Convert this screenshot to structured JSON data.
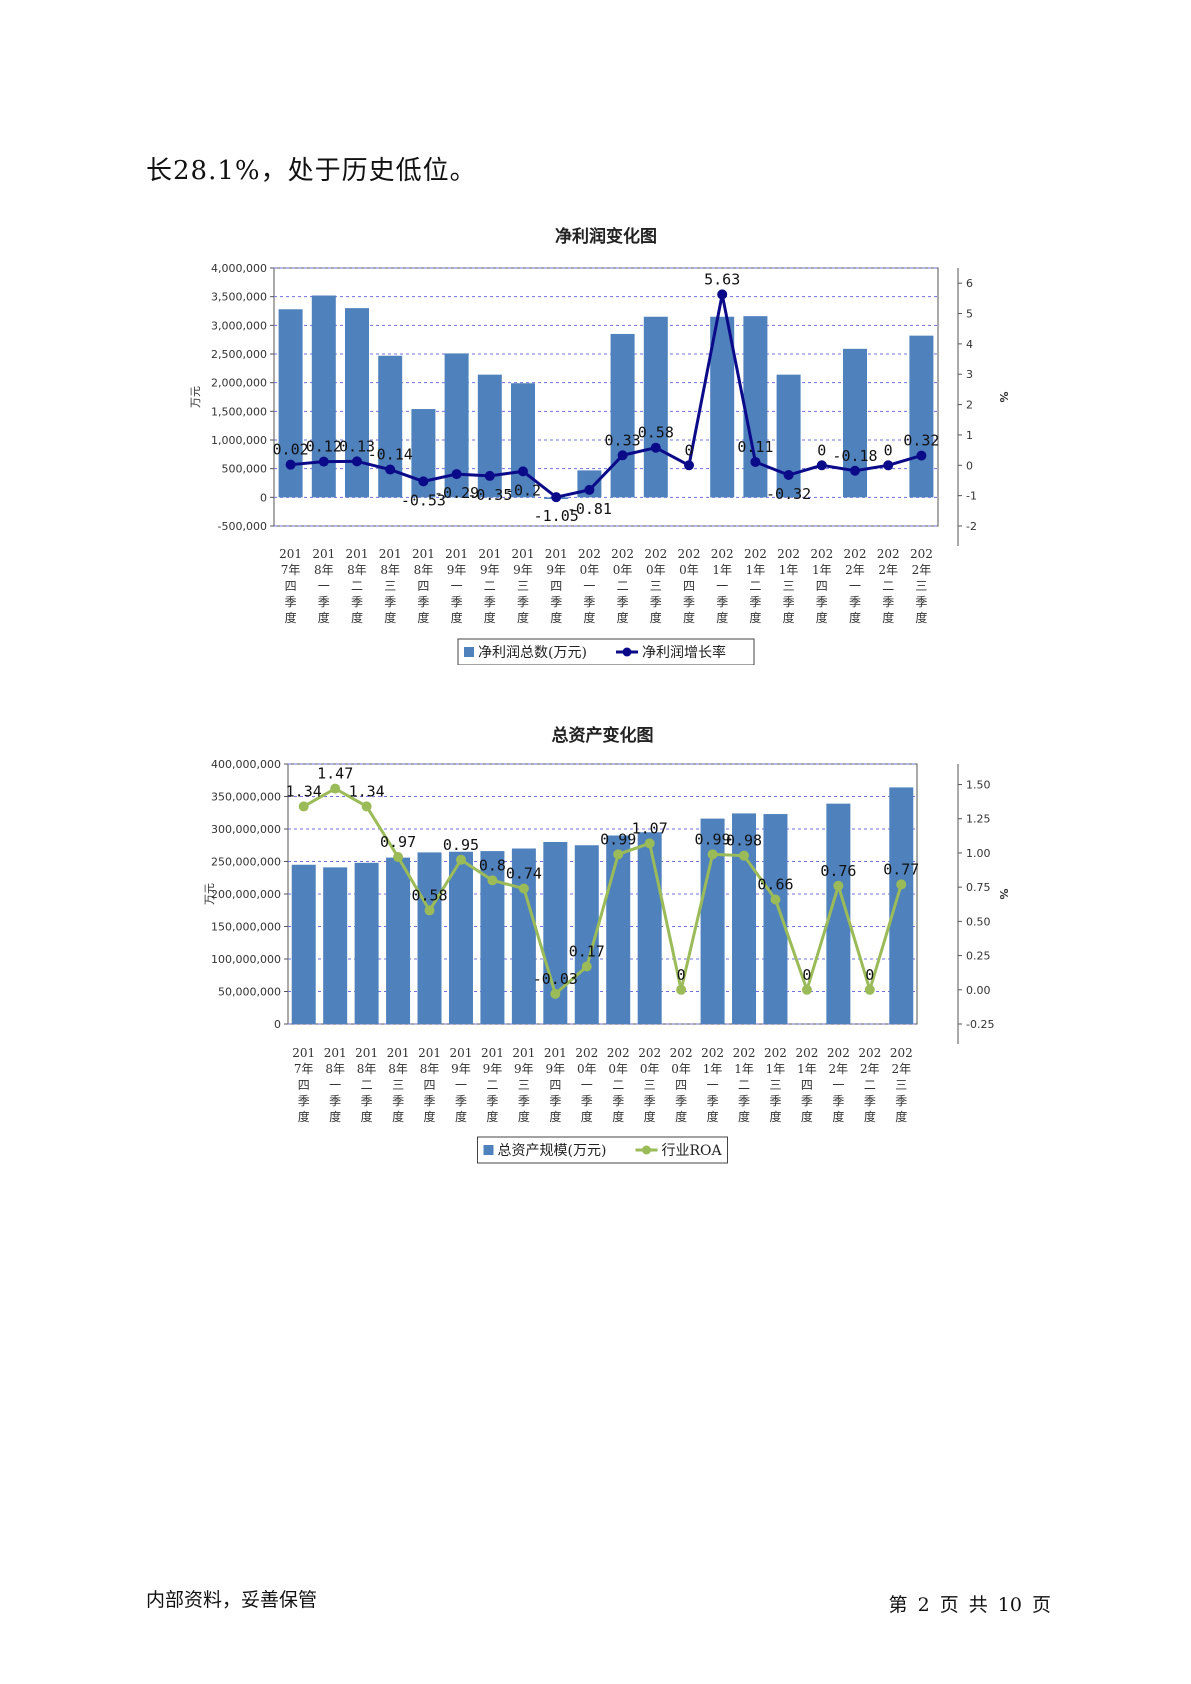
{
  "intro_text": "长28.1%，处于历史低位。",
  "footer": {
    "left": "内部资料，妥善保管",
    "right": "第 2 页   共 10 页"
  },
  "colors": {
    "bar": "#4f81bd",
    "line1": "#0b0b8a",
    "line2": "#9bbb59",
    "grid": "#7070e0"
  },
  "chart_data": [
    {
      "type": "bar",
      "title": "净利润变化图",
      "ylabel": "万元",
      "y2label": "%",
      "categories": [
        "2017年四季度",
        "2018年一季度",
        "2018年二季度",
        "2018年三季度",
        "2018年四季度",
        "2019年一季度",
        "2019年二季度",
        "2019年三季度",
        "2019年四季度",
        "2020年一季度",
        "2020年二季度",
        "2020年三季度",
        "2020年四季度",
        "2021年一季度",
        "2021年二季度",
        "2021年三季度",
        "2021年四季度",
        "2022年一季度",
        "2022年二季度",
        "2022年三季度"
      ],
      "ylim": [
        -500000,
        4000000
      ],
      "yticks": [
        -500000,
        0,
        500000,
        1000000,
        1500000,
        2000000,
        2500000,
        3000000,
        3500000,
        4000000
      ],
      "ytick_labels": [
        "-500,000",
        "0",
        "500,000",
        "1,000,000",
        "1,500,000",
        "2,000,000",
        "2,500,000",
        "3,000,000",
        "3,500,000",
        "4,000,000"
      ],
      "y2lim": [
        -2,
        6.5
      ],
      "y2ticks": [
        -2,
        -1,
        0,
        1,
        2,
        3,
        4,
        5,
        6
      ],
      "series": [
        {
          "name": "净利润总数(万元)",
          "kind": "bar",
          "axis": "left",
          "values": [
            3280000,
            3520000,
            3300000,
            2470000,
            1540000,
            2510000,
            2140000,
            1990000,
            -30000,
            470000,
            2850000,
            3150000,
            0,
            3150000,
            3160000,
            2140000,
            0,
            2590000,
            0,
            2820000
          ]
        },
        {
          "name": "净利润增长率",
          "kind": "line",
          "axis": "right",
          "values": [
            0.02,
            0.12,
            0.13,
            -0.14,
            -0.53,
            -0.29,
            -0.35,
            -0.2,
            -1.05,
            -0.81,
            0.33,
            0.58,
            0,
            5.63,
            0.11,
            -0.32,
            0,
            -0.18,
            0,
            0.32
          ],
          "labels": [
            "0.02",
            "0.12",
            "0.13",
            "-0.14",
            "-0.53",
            "-0.29",
            "-0.35",
            "-0.2",
            "-1.05",
            "-0.81",
            "0.33",
            "0.58",
            "0",
            "5.63",
            "0.11",
            "-0.32",
            "0",
            "-0.18",
            "0",
            "0.32"
          ]
        }
      ],
      "legend": "bottom"
    },
    {
      "type": "bar",
      "title": "总资产变化图",
      "ylabel": "万元",
      "y2label": "%",
      "categories": [
        "2017年四季度",
        "2018年一季度",
        "2018年二季度",
        "2018年三季度",
        "2018年四季度",
        "2019年一季度",
        "2019年二季度",
        "2019年三季度",
        "2019年四季度",
        "2020年一季度",
        "2020年二季度",
        "2020年三季度",
        "2020年四季度",
        "2021年一季度",
        "2021年二季度",
        "2021年三季度",
        "2021年四季度",
        "2022年一季度",
        "2022年二季度",
        "2022年三季度"
      ],
      "ylim": [
        0,
        400000000
      ],
      "yticks": [
        0,
        50000000,
        100000000,
        150000000,
        200000000,
        250000000,
        300000000,
        350000000,
        400000000
      ],
      "ytick_labels": [
        "0",
        "50,000,000",
        "100,000,000",
        "150,000,000",
        "200,000,000",
        "250,000,000",
        "300,000,000",
        "350,000,000",
        "400,000,000"
      ],
      "y2lim": [
        -0.25,
        1.65
      ],
      "y2ticks": [
        -0.25,
        0,
        0.25,
        0.5,
        0.75,
        1,
        1.25,
        1.5
      ],
      "y2tick_labels": [
        "-0.25",
        "0.00",
        "0.25",
        "0.50",
        "0.75",
        "1.00",
        "1.25",
        "1.50"
      ],
      "series": [
        {
          "name": "总资产规模(万元)",
          "kind": "bar",
          "axis": "left",
          "values": [
            245000000,
            241000000,
            248000000,
            256000000,
            264000000,
            265000000,
            266000000,
            270000000,
            280000000,
            275000000,
            290000000,
            295000000,
            0,
            316000000,
            324000000,
            323000000,
            0,
            339000000,
            0,
            364000000
          ]
        },
        {
          "name": "行业ROA",
          "kind": "line",
          "axis": "right",
          "values": [
            1.34,
            1.47,
            1.34,
            0.97,
            0.58,
            0.95,
            0.8,
            0.74,
            -0.03,
            0.17,
            0.99,
            1.07,
            0,
            0.99,
            0.98,
            0.66,
            0,
            0.76,
            0,
            0.77
          ],
          "labels": [
            "1.34",
            "1.47",
            "1.34",
            "0.97",
            "0.58",
            "0.95",
            "0.8",
            "0.74",
            "-0.03",
            "0.17",
            "0.99",
            "1.07",
            "0",
            "0.99",
            "0.98",
            "0.66",
            "0",
            "0.76",
            "0",
            "0.77"
          ]
        }
      ],
      "legend": "bottom"
    }
  ]
}
